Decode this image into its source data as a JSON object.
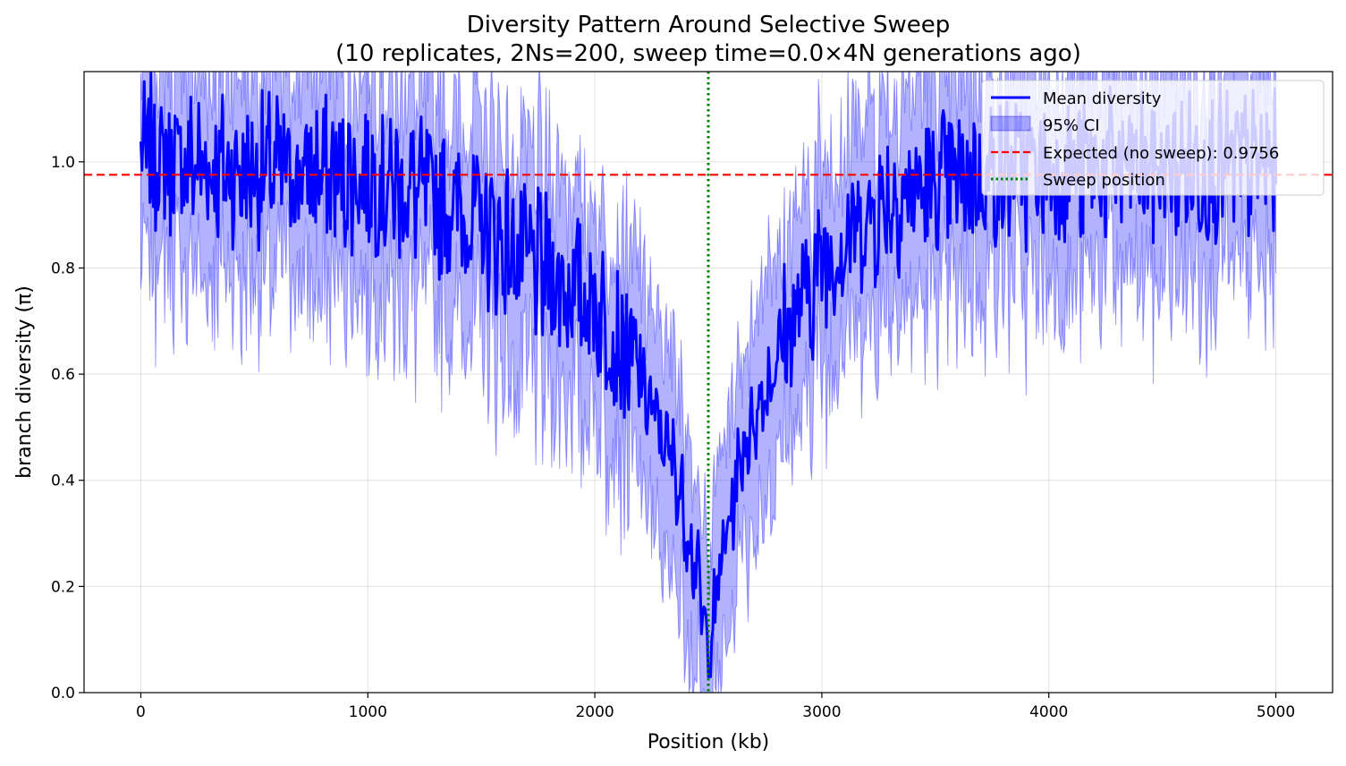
{
  "chart_data": {
    "type": "line",
    "title": "Diversity Pattern Around Selective Sweep",
    "subtitle": "(10 replicates, 2Ns=200, sweep time=0.0×4N generations ago)",
    "xlabel": "Position (kb)",
    "ylabel": "branch diversity (π)",
    "xlim": [
      -250,
      5250
    ],
    "ylim": [
      0.0,
      1.17
    ],
    "x_ticks": [
      0,
      1000,
      2000,
      3000,
      4000,
      5000
    ],
    "x_tick_labels": [
      "0",
      "1000",
      "2000",
      "3000",
      "4000",
      "5000"
    ],
    "y_ticks": [
      0.0,
      0.2,
      0.4,
      0.6,
      0.8,
      1.0
    ],
    "y_tick_labels": [
      "0.0",
      "0.2",
      "0.4",
      "0.6",
      "0.8",
      "1.0"
    ],
    "grid": true,
    "legend_position": "top-right",
    "sweep_position": 2500,
    "expected_value": 0.9756,
    "region": [
      0,
      5000
    ],
    "trough_points": [
      {
        "x": 0,
        "y": 1.0
      },
      {
        "x": 400,
        "y": 0.97
      },
      {
        "x": 1000,
        "y": 0.96
      },
      {
        "x": 1400,
        "y": 0.9
      },
      {
        "x": 1700,
        "y": 0.8
      },
      {
        "x": 2000,
        "y": 0.72
      },
      {
        "x": 2200,
        "y": 0.58
      },
      {
        "x": 2350,
        "y": 0.42
      },
      {
        "x": 2450,
        "y": 0.22
      },
      {
        "x": 2500,
        "y": 0.05
      },
      {
        "x": 2550,
        "y": 0.22
      },
      {
        "x": 2650,
        "y": 0.45
      },
      {
        "x": 2800,
        "y": 0.62
      },
      {
        "x": 3000,
        "y": 0.8
      },
      {
        "x": 3300,
        "y": 0.92
      },
      {
        "x": 3800,
        "y": 0.97
      },
      {
        "x": 5000,
        "y": 0.98
      }
    ],
    "noise_amplitude": 0.13,
    "ci_lower_offset": 0.2,
    "ci_upper_offset": 0.19,
    "series": [
      {
        "name": "Mean diversity",
        "color": "#0000ff",
        "style": "solid"
      },
      {
        "name": "95% CI",
        "color": "#0000ff",
        "style": "band"
      },
      {
        "name": "Expected (no sweep): 0.9756",
        "color": "#ff0000",
        "style": "dashed"
      },
      {
        "name": "Sweep position",
        "color": "#008000",
        "style": "dotted"
      }
    ]
  }
}
